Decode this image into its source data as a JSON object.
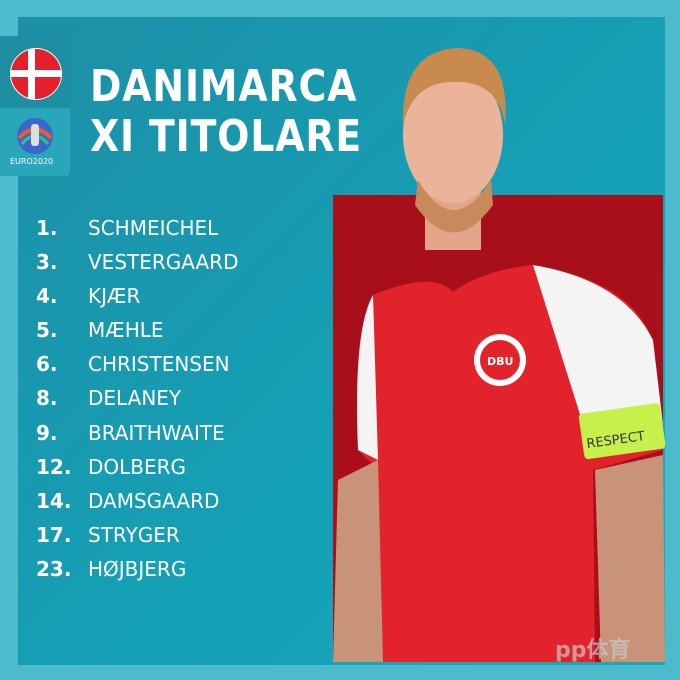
{
  "header": {
    "title_line1": "DANIMARCA",
    "title_line2": "XI TITOLARE"
  },
  "badges": {
    "flag": "denmark-flag",
    "logo_text": "EURO2020"
  },
  "lineup": [
    {
      "number": "1.",
      "name": "SCHMEICHEL"
    },
    {
      "number": "3.",
      "name": "VESTERGAARD"
    },
    {
      "number": "4.",
      "name": "KJÆR"
    },
    {
      "number": "5.",
      "name": "MÆHLE"
    },
    {
      "number": "6.",
      "name": "CHRISTENSEN"
    },
    {
      "number": "8.",
      "name": "DELANEY"
    },
    {
      "number": "9.",
      "name": "BRAITHWAITE"
    },
    {
      "number": "12.",
      "name": "DOLBERG"
    },
    {
      "number": "14.",
      "name": "DAMSGAARD"
    },
    {
      "number": "17.",
      "name": "STRYGER"
    },
    {
      "number": "23.",
      "name": "HØJBJERG"
    }
  ],
  "photo": {
    "armband_text": "RESPECT",
    "crest_text": "DBU"
  },
  "watermark": "pp体育",
  "colors": {
    "background": "#4cbccd",
    "panel": "#1597ad",
    "photo_bg": "#a80f1a",
    "shirt": "#e3232b",
    "armband": "#c6f04a"
  }
}
